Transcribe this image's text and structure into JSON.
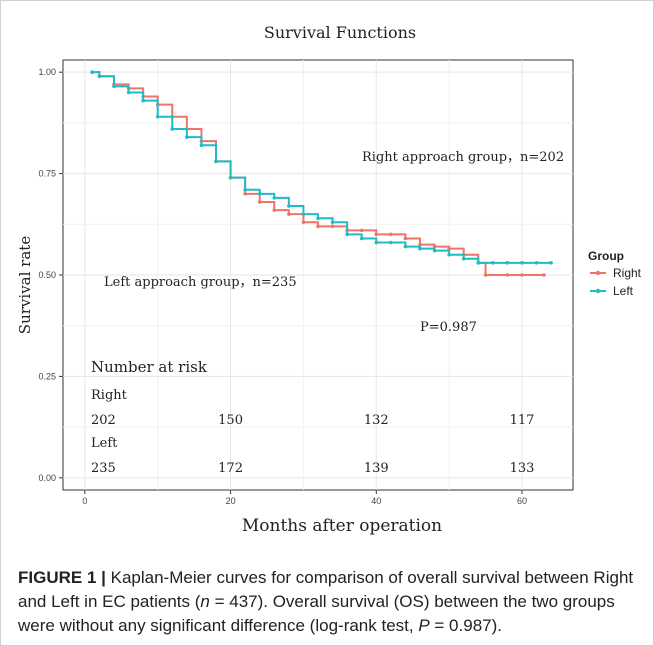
{
  "chart_data": {
    "type": "line",
    "title": "Survival Functions",
    "xlabel": "Months after operation",
    "ylabel": "Survival rate",
    "xlim": [
      -3,
      67
    ],
    "ylim": [
      -0.03,
      1.03
    ],
    "x_ticks": [
      0,
      20,
      40,
      60
    ],
    "y_ticks": [
      0.0,
      0.25,
      0.5,
      0.75,
      1.0
    ],
    "y_tick_labels": [
      "0.00",
      "0.25",
      "0.50",
      "0.75",
      "1.00"
    ],
    "grid": true,
    "legend": {
      "title": "Group",
      "position": "right"
    },
    "series": [
      {
        "name": "Right",
        "color": "#f0736a",
        "points": [
          [
            1,
            1.0
          ],
          [
            2,
            0.99
          ],
          [
            4,
            0.97
          ],
          [
            6,
            0.96
          ],
          [
            8,
            0.94
          ],
          [
            10,
            0.92
          ],
          [
            12,
            0.89
          ],
          [
            14,
            0.86
          ],
          [
            16,
            0.83
          ],
          [
            18,
            0.78
          ],
          [
            20,
            0.74
          ],
          [
            22,
            0.7
          ],
          [
            24,
            0.68
          ],
          [
            26,
            0.66
          ],
          [
            28,
            0.65
          ],
          [
            30,
            0.63
          ],
          [
            32,
            0.62
          ],
          [
            34,
            0.62
          ],
          [
            36,
            0.61
          ],
          [
            38,
            0.61
          ],
          [
            40,
            0.6
          ],
          [
            42,
            0.6
          ],
          [
            44,
            0.59
          ],
          [
            46,
            0.575
          ],
          [
            48,
            0.57
          ],
          [
            50,
            0.565
          ],
          [
            52,
            0.55
          ],
          [
            54,
            0.53
          ],
          [
            55,
            0.5
          ],
          [
            58,
            0.5
          ],
          [
            60,
            0.5
          ],
          [
            63,
            0.5
          ]
        ]
      },
      {
        "name": "Left",
        "color": "#1fbcc4",
        "points": [
          [
            1,
            1.0
          ],
          [
            2,
            0.99
          ],
          [
            4,
            0.965
          ],
          [
            6,
            0.95
          ],
          [
            8,
            0.93
          ],
          [
            10,
            0.89
          ],
          [
            12,
            0.86
          ],
          [
            14,
            0.84
          ],
          [
            16,
            0.82
          ],
          [
            18,
            0.78
          ],
          [
            20,
            0.74
          ],
          [
            22,
            0.71
          ],
          [
            24,
            0.7
          ],
          [
            26,
            0.69
          ],
          [
            28,
            0.67
          ],
          [
            30,
            0.65
          ],
          [
            32,
            0.64
          ],
          [
            34,
            0.63
          ],
          [
            36,
            0.6
          ],
          [
            38,
            0.59
          ],
          [
            40,
            0.58
          ],
          [
            42,
            0.58
          ],
          [
            44,
            0.57
          ],
          [
            46,
            0.565
          ],
          [
            48,
            0.56
          ],
          [
            50,
            0.55
          ],
          [
            52,
            0.54
          ],
          [
            54,
            0.53
          ],
          [
            56,
            0.53
          ],
          [
            58,
            0.53
          ],
          [
            60,
            0.53
          ],
          [
            62,
            0.53
          ],
          [
            64,
            0.53
          ]
        ]
      }
    ],
    "annotations": {
      "right_group": "Right approach group，n=202",
      "left_group": "Left approach group，n=235",
      "p_value": "P=0.987"
    },
    "risk_table": {
      "title": "Number at risk",
      "rows": [
        {
          "label": "Right",
          "values": [
            "202",
            "150",
            "132",
            "117"
          ]
        },
        {
          "label": "Left",
          "values": [
            "235",
            "172",
            "139",
            "133"
          ]
        }
      ]
    }
  },
  "caption": {
    "label": "FIGURE 1 |",
    "text_1": " Kaplan-Meier curves for comparison of overall survival between Right and Left in EC patients (",
    "n_var": "n",
    "text_2": " = 437). Overall survival (OS) between the two groups were without any significant difference (log-rank test, ",
    "p_var": "P",
    "text_3": " = 0.987)."
  }
}
